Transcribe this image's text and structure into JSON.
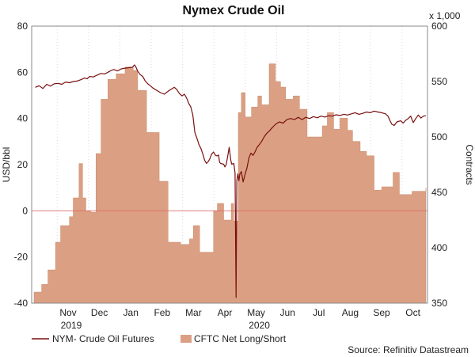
{
  "chart_data": {
    "type": "bar+line",
    "title": "Nymex Crude Oil",
    "left_axis": {
      "label": "USD/bbl",
      "range": [
        -40,
        80
      ],
      "ticks": [
        80,
        60,
        40,
        20,
        0,
        -20,
        -40
      ]
    },
    "right_axis": {
      "label": "Contracts",
      "multiplier": "x 1,000",
      "range": [
        350,
        600
      ],
      "ticks": [
        600,
        550,
        500,
        450,
        400,
        350
      ]
    },
    "x_axis": {
      "months": [
        "Nov",
        "Dec",
        "Jan",
        "Feb",
        "Mar",
        "Apr",
        "May",
        "Jun",
        "Jul",
        "Aug",
        "Sep",
        "Oct"
      ],
      "years": [
        {
          "label": "2019",
          "month": "Nov"
        },
        {
          "label": "2020",
          "month": "May"
        }
      ]
    },
    "zero_line": true,
    "grid": "vertical dotted",
    "legend_position": "bottom-left",
    "source": "Source: Refinitiv Datastream",
    "series": [
      {
        "name": "NYM- Crude Oil Futures",
        "type": "line",
        "axis": "left",
        "color": "#7a1010",
        "points": [
          [
            0.05,
            53.5
          ],
          [
            0.2,
            54.2
          ],
          [
            0.35,
            53.0
          ],
          [
            0.5,
            54.8
          ],
          [
            0.65,
            54.0
          ],
          [
            0.8,
            55.0
          ],
          [
            0.95,
            55.2
          ],
          [
            1.1,
            54.8
          ],
          [
            1.25,
            55.8
          ],
          [
            1.4,
            55.5
          ],
          [
            1.55,
            56.0
          ],
          [
            1.7,
            56.2
          ],
          [
            1.85,
            56.8
          ],
          [
            2.0,
            57.5
          ],
          [
            2.1,
            57.2
          ],
          [
            2.2,
            58.2
          ],
          [
            2.35,
            58.0
          ],
          [
            2.5,
            58.8
          ],
          [
            2.65,
            59.5
          ],
          [
            2.8,
            59.3
          ],
          [
            2.95,
            60.2
          ],
          [
            3.05,
            60.8
          ],
          [
            3.15,
            61.2
          ],
          [
            3.3,
            60.6
          ],
          [
            3.45,
            61.5
          ],
          [
            3.6,
            61.8
          ],
          [
            3.75,
            62.0
          ],
          [
            3.9,
            62.2
          ],
          [
            3.97,
            63.2
          ],
          [
            4.02,
            62.5
          ],
          [
            4.1,
            60.5
          ],
          [
            4.2,
            59.0
          ],
          [
            4.3,
            58.2
          ],
          [
            4.4,
            56.2
          ],
          [
            4.5,
            55.0
          ],
          [
            4.6,
            54.2
          ],
          [
            4.7,
            53.2
          ],
          [
            4.85,
            52.2
          ],
          [
            5.0,
            51.2
          ],
          [
            5.15,
            50.5
          ],
          [
            5.3,
            51.8
          ],
          [
            5.45,
            52.8
          ],
          [
            5.55,
            53.5
          ],
          [
            5.65,
            52.5
          ],
          [
            5.75,
            50.8
          ],
          [
            5.85,
            49.8
          ],
          [
            5.95,
            50.5
          ],
          [
            6.05,
            48.5
          ],
          [
            6.12,
            46.5
          ],
          [
            6.2,
            45.0
          ],
          [
            6.28,
            41.5
          ],
          [
            6.36,
            34.0
          ],
          [
            6.44,
            31.5
          ],
          [
            6.52,
            28.8
          ],
          [
            6.6,
            27.0
          ],
          [
            6.68,
            24.5
          ],
          [
            6.75,
            21.8
          ],
          [
            6.82,
            20.5
          ],
          [
            6.9,
            21.5
          ],
          [
            6.95,
            22.5
          ],
          [
            7.02,
            24.5
          ],
          [
            7.1,
            25.5
          ],
          [
            7.18,
            24.0
          ],
          [
            7.24,
            23.8
          ],
          [
            7.3,
            24.2
          ],
          [
            7.34,
            21.0
          ],
          [
            7.38,
            20.5
          ],
          [
            7.5,
            20.2
          ],
          [
            7.55,
            19.0
          ],
          [
            7.6,
            20.0
          ],
          [
            7.65,
            23.0
          ],
          [
            7.68,
            25.0
          ],
          [
            7.72,
            27.5
          ],
          [
            7.78,
            22.0
          ],
          [
            7.82,
            20.2
          ],
          [
            7.9,
            20.5
          ],
          [
            7.95,
            16.5
          ],
          [
            7.99,
            -37.5
          ],
          [
            8.02,
            13.0
          ],
          [
            8.06,
            16.0
          ],
          [
            8.1,
            13.0
          ],
          [
            8.14,
            16.0
          ],
          [
            8.2,
            17.0
          ],
          [
            8.27,
            12.5
          ],
          [
            8.35,
            16.0
          ],
          [
            8.42,
            18.5
          ],
          [
            8.5,
            23.0
          ],
          [
            8.58,
            25.0
          ],
          [
            8.66,
            24.0
          ],
          [
            8.74,
            25.5
          ],
          [
            8.82,
            27.5
          ],
          [
            8.9,
            28.5
          ],
          [
            9.0,
            30.0
          ],
          [
            9.1,
            32.0
          ],
          [
            9.2,
            33.5
          ],
          [
            9.3,
            34.5
          ],
          [
            9.42,
            36.0
          ],
          [
            9.55,
            37.5
          ],
          [
            9.7,
            38.5
          ],
          [
            9.85,
            38.0
          ],
          [
            10.0,
            39.5
          ],
          [
            10.15,
            40.0
          ],
          [
            10.3,
            39.5
          ],
          [
            10.45,
            40.5
          ],
          [
            10.6,
            39.5
          ],
          [
            10.75,
            40.5
          ],
          [
            10.9,
            40.0
          ],
          [
            11.05,
            40.8
          ],
          [
            11.2,
            40.3
          ],
          [
            11.35,
            41.0
          ],
          [
            11.5,
            40.6
          ],
          [
            11.65,
            41.2
          ],
          [
            11.8,
            41.0
          ],
          [
            11.95,
            41.6
          ],
          [
            12.1,
            41.3
          ],
          [
            12.25,
            41.8
          ],
          [
            12.4,
            41.5
          ],
          [
            12.55,
            42.0
          ],
          [
            12.7,
            42.5
          ],
          [
            12.85,
            41.8
          ],
          [
            13.0,
            42.2
          ],
          [
            13.15,
            42.8
          ],
          [
            13.3,
            42.5
          ],
          [
            13.45,
            43.2
          ],
          [
            13.6,
            42.8
          ],
          [
            13.75,
            42.5
          ],
          [
            13.9,
            42.0
          ],
          [
            14.0,
            41.0
          ],
          [
            14.08,
            39.0
          ],
          [
            14.15,
            37.5
          ],
          [
            14.25,
            37.0
          ],
          [
            14.35,
            38.5
          ],
          [
            14.5,
            39.0
          ],
          [
            14.6,
            38.0
          ],
          [
            14.7,
            39.2
          ],
          [
            14.8,
            40.0
          ],
          [
            14.9,
            41.0
          ],
          [
            14.95,
            39.5
          ],
          [
            15.0,
            38.2
          ],
          [
            15.1,
            40.0
          ],
          [
            15.2,
            41.5
          ],
          [
            15.3,
            40.2
          ],
          [
            15.4,
            41.0
          ],
          [
            15.5,
            41.2
          ]
        ]
      },
      {
        "name": "CFTC Net Long/Short",
        "type": "step-area",
        "axis": "right",
        "color": "#dba083",
        "steps": [
          [
            0.0,
            360
          ],
          [
            0.3,
            367
          ],
          [
            0.55,
            380
          ],
          [
            0.85,
            405
          ],
          [
            1.05,
            420
          ],
          [
            1.4,
            428
          ],
          [
            1.55,
            445
          ],
          [
            1.78,
            476
          ],
          [
            1.92,
            445
          ],
          [
            2.05,
            433
          ],
          [
            2.25,
            432
          ],
          [
            2.45,
            485
          ],
          [
            2.65,
            534
          ],
          [
            2.92,
            552
          ],
          [
            3.25,
            557
          ],
          [
            3.6,
            563
          ],
          [
            3.92,
            560
          ],
          [
            4.1,
            542
          ],
          [
            4.45,
            504
          ],
          [
            4.95,
            460
          ],
          [
            5.3,
            405
          ],
          [
            5.8,
            403
          ],
          [
            6.15,
            408
          ],
          [
            6.3,
            420
          ],
          [
            6.55,
            396
          ],
          [
            6.8,
            396
          ],
          [
            7.1,
            433
          ],
          [
            7.25,
            440
          ],
          [
            7.5,
            425
          ],
          [
            7.8,
            440
          ],
          [
            7.9,
            424
          ],
          [
            8.08,
            522
          ],
          [
            8.2,
            540
          ],
          [
            8.35,
            518
          ],
          [
            8.6,
            527
          ],
          [
            8.85,
            537
          ],
          [
            9.0,
            529
          ],
          [
            9.3,
            566
          ],
          [
            9.55,
            550
          ],
          [
            9.75,
            545
          ],
          [
            9.95,
            534
          ],
          [
            10.25,
            537
          ],
          [
            10.5,
            525
          ],
          [
            10.8,
            500
          ],
          [
            11.2,
            500
          ],
          [
            11.4,
            510
          ],
          [
            11.6,
            522
          ],
          [
            11.85,
            507
          ],
          [
            12.1,
            517
          ],
          [
            12.4,
            506
          ],
          [
            12.6,
            496
          ],
          [
            12.9,
            487
          ],
          [
            13.15,
            483
          ],
          [
            13.45,
            452
          ],
          [
            13.75,
            455
          ],
          [
            14.2,
            468
          ],
          [
            14.45,
            448
          ],
          [
            14.95,
            451
          ],
          [
            15.5,
            454
          ]
        ],
        "end_x": 15.5
      }
    ]
  }
}
